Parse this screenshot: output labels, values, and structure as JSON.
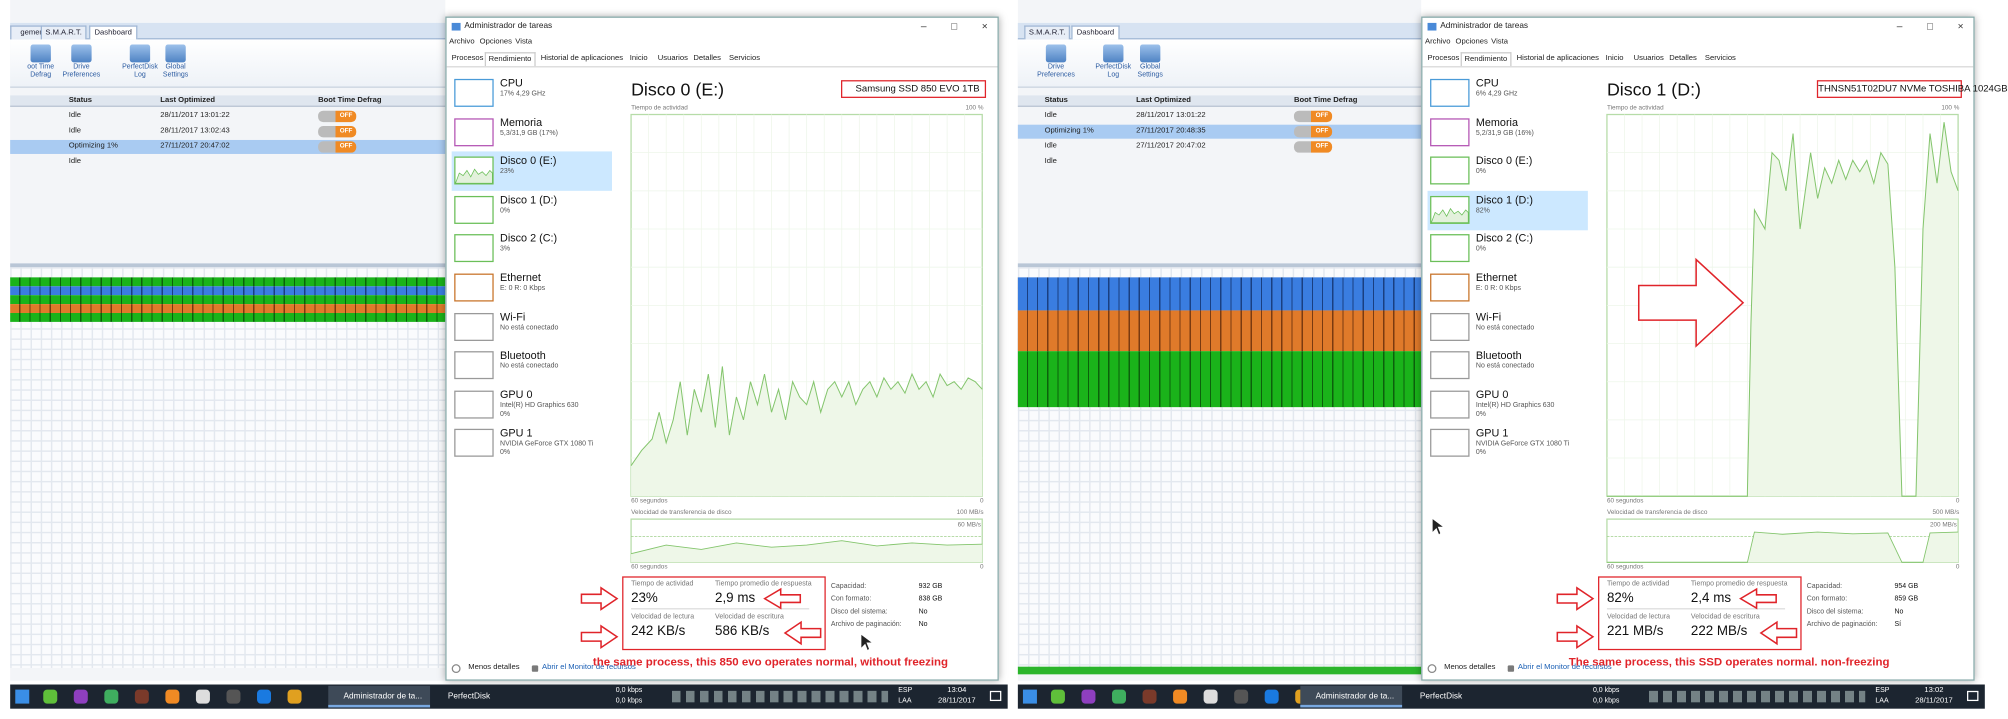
{
  "panels": [
    {
      "perfectdisk": {
        "tabs": [
          "gement",
          "S.M.A.R.T.",
          "Dashboard"
        ],
        "toolbar": [
          [
            "oot Time",
            "Defrag"
          ],
          [
            "Drive",
            "Preferences"
          ],
          [
            "PerfectDisk",
            "Log"
          ],
          [
            "Global",
            "Settings"
          ]
        ],
        "columns": [
          "Status",
          "Last Optimized",
          "Boot Time Defrag"
        ],
        "rows": [
          [
            "Idle",
            "28/11/2017 13:01:22",
            "OFF"
          ],
          [
            "Idle",
            "28/11/2017 13:02:43",
            "OFF"
          ],
          [
            "Optimizing 1%",
            "27/11/2017 20:47:02",
            "OFF"
          ],
          [
            "Idle"
          ]
        ]
      },
      "taskmgr": {
        "title": "Administrador de tareas",
        "controls": [
          "–",
          "□",
          "×"
        ],
        "menu": [
          "Archivo",
          "Opciones",
          "Vista"
        ],
        "tabs": [
          "Procesos",
          "Rendimiento",
          "Historial de aplicaciones",
          "Inicio",
          "Usuarios",
          "Detalles",
          "Servicios"
        ],
        "devices": [
          {
            "name": "CPU",
            "detail": [
              "17% 4,29 GHz"
            ]
          },
          {
            "name": "Memoria",
            "detail": [
              "5,3/31,9 GB (17%)"
            ]
          },
          {
            "name": "Disco 0 (E:)",
            "detail": [
              "23%"
            ]
          },
          {
            "name": "Disco 1 (D:)",
            "detail": [
              "0%"
            ]
          },
          {
            "name": "Disco 2 (C:)",
            "detail": [
              "3%"
            ]
          },
          {
            "name": "Ethernet",
            "detail": [
              "E: 0 R: 0 Kbps"
            ]
          },
          {
            "name": "Wi-Fi",
            "detail": [
              "No está conectado"
            ]
          },
          {
            "name": "Bluetooth",
            "detail": [
              "No está conectado"
            ]
          },
          {
            "name": "GPU 0",
            "detail": [
              "Intel(R) HD Graphics 630",
              "0%"
            ]
          },
          {
            "name": "GPU 1",
            "detail": [
              "NVIDIA GeForce GTX 1080 Ti",
              "0%"
            ]
          }
        ],
        "disk_title": "Disco 0 (E:)",
        "model": "Samsung SSD 850 EVO 1TB",
        "activity_label": "Tiempo de actividad",
        "activity_max": "100 %",
        "time_label": "60 segundos",
        "zero": "0",
        "transfer_label": "Velocidad de transferencia de disco",
        "transfer_max": "100 MB/s",
        "transfer_mark": "60 MB/s",
        "stats": [
          [
            "Tiempo de actividad",
            "23%"
          ],
          [
            "Tiempo promedio de respuesta",
            "2,9 ms"
          ],
          [
            "Velocidad de lectura",
            "242 KB/s"
          ],
          [
            "Velocidad de escritura",
            "586 KB/s"
          ]
        ],
        "properties": [
          [
            "Capacidad:",
            "932 GB"
          ],
          [
            "Con formato:",
            "838 GB"
          ],
          [
            "Disco del sistema:",
            "No"
          ],
          [
            "Archivo de paginación:",
            "No"
          ]
        ],
        "footer": [
          "Menos detalles",
          "Abrir el Monitor de recursos"
        ]
      },
      "annotation": "the same process, this 850 evo operates normal, without freezing",
      "taskbar": {
        "windows": [
          "Administrador de ta...",
          "PerfectDisk"
        ],
        "net": [
          "0,0 kbps",
          "0,0 kbps"
        ],
        "lang": [
          "ESP",
          "LAA"
        ],
        "time": "13:04",
        "date": "28/11/2017"
      }
    },
    {
      "perfectdisk": {
        "tabs": [
          "S.M.A.R.T.",
          "Dashboard"
        ],
        "toolbar": [
          [
            "Drive",
            "Preferences"
          ],
          [
            "PerfectDisk",
            "Log"
          ],
          [
            "Global",
            "Settings"
          ]
        ],
        "columns": [
          "Status",
          "Last Optimized",
          "Boot Time Defrag"
        ],
        "rows": [
          [
            "Idle",
            "28/11/2017 13:01:22",
            "OFF"
          ],
          [
            "Optimizing 1%",
            "27/11/2017 20:48:35",
            "OFF"
          ],
          [
            "Idle",
            "27/11/2017 20:47:02",
            "OFF"
          ],
          [
            "Idle"
          ]
        ]
      },
      "taskmgr": {
        "title": "Administrador de tareas",
        "controls": [
          "–",
          "□",
          "×"
        ],
        "menu": [
          "Archivo",
          "Opciones",
          "Vista"
        ],
        "tabs": [
          "Procesos",
          "Rendimiento",
          "Historial de aplicaciones",
          "Inicio",
          "Usuarios",
          "Detalles",
          "Servicios"
        ],
        "devices": [
          {
            "name": "CPU",
            "detail": [
              "6% 4,29 GHz"
            ]
          },
          {
            "name": "Memoria",
            "detail": [
              "5,2/31,9 GB (16%)"
            ]
          },
          {
            "name": "Disco 0 (E:)",
            "detail": [
              "0%"
            ]
          },
          {
            "name": "Disco 1 (D:)",
            "detail": [
              "82%"
            ]
          },
          {
            "name": "Disco 2 (C:)",
            "detail": [
              "0%"
            ]
          },
          {
            "name": "Ethernet",
            "detail": [
              "E: 0 R: 0 Kbps"
            ]
          },
          {
            "name": "Wi-Fi",
            "detail": [
              "No está conectado"
            ]
          },
          {
            "name": "Bluetooth",
            "detail": [
              "No está conectado"
            ]
          },
          {
            "name": "GPU 0",
            "detail": [
              "Intel(R) HD Graphics 630",
              "0%"
            ]
          },
          {
            "name": "GPU 1",
            "detail": [
              "NVIDIA GeForce GTX 1080 Ti",
              "0%"
            ]
          }
        ],
        "disk_title": "Disco 1 (D:)",
        "model": "THNSN51T02DU7 NVMe TOSHIBA 1024GB",
        "activity_label": "Tiempo de actividad",
        "activity_max": "100 %",
        "time_label": "60 segundos",
        "zero": "0",
        "transfer_label": "Velocidad de transferencia de disco",
        "transfer_max": "500 MB/s",
        "transfer_mark": "200 MB/s",
        "stats": [
          [
            "Tiempo de actividad",
            "82%"
          ],
          [
            "Tiempo promedio de respuesta",
            "2,4 ms"
          ],
          [
            "Velocidad de lectura",
            "221 MB/s"
          ],
          [
            "Velocidad de escritura",
            "222 MB/s"
          ]
        ],
        "properties": [
          [
            "Capacidad:",
            "954 GB"
          ],
          [
            "Con formato:",
            "859 GB"
          ],
          [
            "Disco del sistema:",
            "No"
          ],
          [
            "Archivo de paginación:",
            "Sí"
          ]
        ],
        "footer": [
          "Menos detalles",
          "Abrir el Monitor de recursos"
        ]
      },
      "annotation": "The same process, this SSD operates normal. non-freezing",
      "taskbar": {
        "windows": [
          "Administrador de ta...",
          "PerfectDisk"
        ],
        "net": [
          "0,0 kbps",
          "0,0 kbps"
        ],
        "lang": [
          "ESP",
          "LAA"
        ],
        "time": "13:02",
        "date": "28/11/2017"
      }
    }
  ]
}
